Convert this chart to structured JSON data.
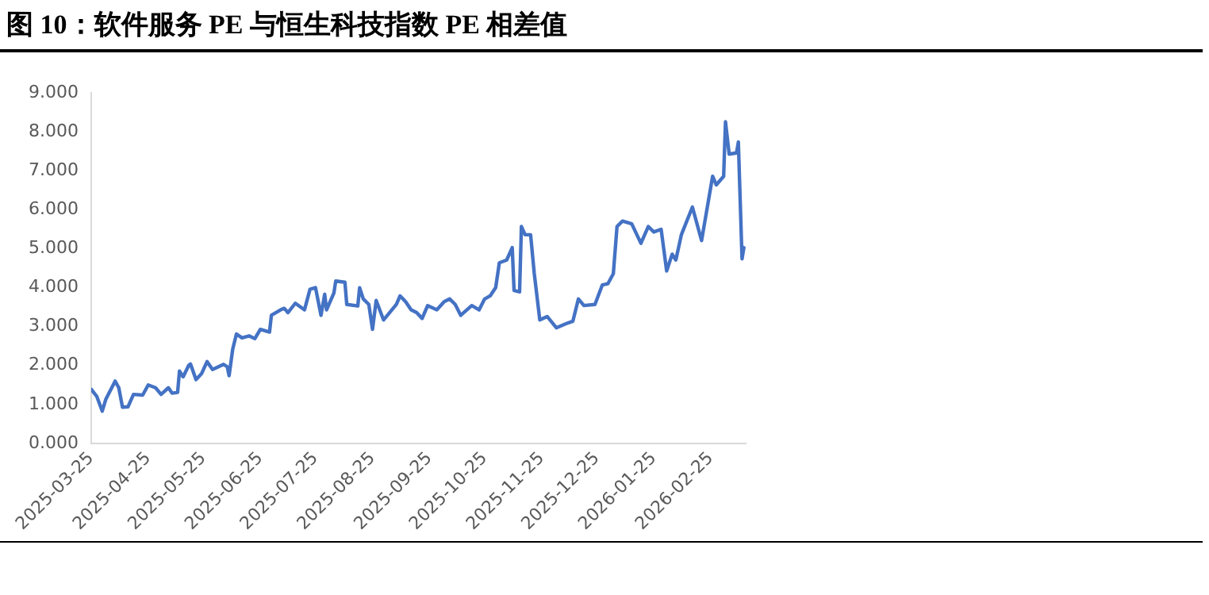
{
  "chart_data": {
    "type": "line",
    "title": "图 10：软件服务 PE 与恒生科技指数 PE 相差值",
    "x": [
      "2025-03-25",
      "2025-03-28",
      "2025-03-31",
      "2025-04-02",
      "2025-04-07",
      "2025-04-09",
      "2025-04-11",
      "2025-04-14",
      "2025-04-17",
      "2025-04-22",
      "2025-04-25",
      "2025-04-29",
      "2025-05-02",
      "2025-05-06",
      "2025-05-08",
      "2025-05-11",
      "2025-05-12",
      "2025-05-14",
      "2025-05-17",
      "2025-05-18",
      "2025-05-21",
      "2025-05-24",
      "2025-05-27",
      "2025-05-30",
      "2025-06-05",
      "2025-06-07",
      "2025-06-08",
      "2025-06-10",
      "2025-06-12",
      "2025-06-15",
      "2025-06-19",
      "2025-06-22",
      "2025-06-25",
      "2025-06-30",
      "2025-07-01",
      "2025-07-06",
      "2025-07-08",
      "2025-07-10",
      "2025-07-14",
      "2025-07-19",
      "2025-07-22",
      "2025-07-25",
      "2025-07-28",
      "2025-07-30",
      "2025-07-31",
      "2025-08-04",
      "2025-08-05",
      "2025-08-10",
      "2025-08-11",
      "2025-08-17",
      "2025-08-18",
      "2025-08-20",
      "2025-08-23",
      "2025-08-25",
      "2025-08-27",
      "2025-08-31",
      "2025-09-07",
      "2025-09-09",
      "2025-09-12",
      "2025-09-15",
      "2025-09-18",
      "2025-09-21",
      "2025-09-24",
      "2025-09-29",
      "2025-10-03",
      "2025-10-06",
      "2025-10-09",
      "2025-10-12",
      "2025-10-18",
      "2025-10-22",
      "2025-10-25",
      "2025-10-28",
      "2025-10-31",
      "2025-11-02",
      "2025-11-06",
      "2025-11-09",
      "2025-11-10",
      "2025-11-13",
      "2025-11-14",
      "2025-11-16",
      "2025-11-19",
      "2025-11-21",
      "2025-11-24",
      "2025-11-28",
      "2025-12-03",
      "2025-12-08",
      "2025-12-12",
      "2025-12-15",
      "2025-12-18",
      "2025-12-24",
      "2025-12-28",
      "2025-12-31",
      "2026-01-03",
      "2026-01-05",
      "2026-01-08",
      "2026-01-13",
      "2026-01-18",
      "2026-01-22",
      "2026-01-25",
      "2026-01-29",
      "2026-02-01",
      "2026-02-04",
      "2026-02-06",
      "2026-02-09",
      "2026-02-15",
      "2026-02-20",
      "2026-02-26",
      "2026-02-28",
      "2026-03-04",
      "2026-03-05",
      "2026-03-07",
      "2026-03-11",
      "2026-03-12",
      "2026-03-14",
      "2026-03-15"
    ],
    "series": [
      {
        "color": "#4472c4",
        "values": [
          1.39,
          1.21,
          0.83,
          1.14,
          1.6,
          1.43,
          0.93,
          0.94,
          1.26,
          1.24,
          1.5,
          1.43,
          1.26,
          1.43,
          1.29,
          1.31,
          1.86,
          1.71,
          2.0,
          2.04,
          1.64,
          1.79,
          2.1,
          1.9,
          2.03,
          1.97,
          1.74,
          2.43,
          2.81,
          2.71,
          2.76,
          2.69,
          2.93,
          2.86,
          3.29,
          3.43,
          3.47,
          3.36,
          3.6,
          3.43,
          3.96,
          4.0,
          3.29,
          3.83,
          3.43,
          3.86,
          4.17,
          4.14,
          3.57,
          3.53,
          4.0,
          3.71,
          3.57,
          2.93,
          3.67,
          3.17,
          3.57,
          3.79,
          3.64,
          3.43,
          3.36,
          3.21,
          3.54,
          3.43,
          3.64,
          3.71,
          3.57,
          3.29,
          3.54,
          3.43,
          3.71,
          3.79,
          4.0,
          4.64,
          4.71,
          5.03,
          3.93,
          3.89,
          5.57,
          5.36,
          5.36,
          4.36,
          3.17,
          3.26,
          2.97,
          3.07,
          3.14,
          3.71,
          3.54,
          3.57,
          4.07,
          4.1,
          4.36,
          5.57,
          5.71,
          5.64,
          5.14,
          5.57,
          5.43,
          5.5,
          4.43,
          4.86,
          4.71,
          5.36,
          6.07,
          5.21,
          6.86,
          6.64,
          6.86,
          8.26,
          7.43,
          7.46,
          7.74,
          4.74,
          5.03
        ]
      }
    ],
    "xlim": [
      "2025-03-25",
      "2026-03-16"
    ],
    "xticks": [
      "2025-03-25",
      "2025-04-25",
      "2025-05-25",
      "2025-06-25",
      "2025-07-25",
      "2025-08-25",
      "2025-09-25",
      "2025-10-25",
      "2025-11-25",
      "2025-12-25",
      "2026-01-25",
      "2026-02-25"
    ],
    "ylim": [
      0,
      9
    ],
    "yticks": [
      {
        "value": 0,
        "label": "0.000"
      },
      {
        "value": 1,
        "label": "1.000"
      },
      {
        "value": 2,
        "label": "2.000"
      },
      {
        "value": 3,
        "label": "3.000"
      },
      {
        "value": 4,
        "label": "4.000"
      },
      {
        "value": 5,
        "label": "5.000"
      },
      {
        "value": 6,
        "label": "6.000"
      },
      {
        "value": 7,
        "label": "7.000"
      },
      {
        "value": 8,
        "label": "8.000"
      },
      {
        "value": 9,
        "label": "9.000"
      }
    ],
    "grid": false,
    "legend": false,
    "marker": "none",
    "line_style": "solid"
  }
}
